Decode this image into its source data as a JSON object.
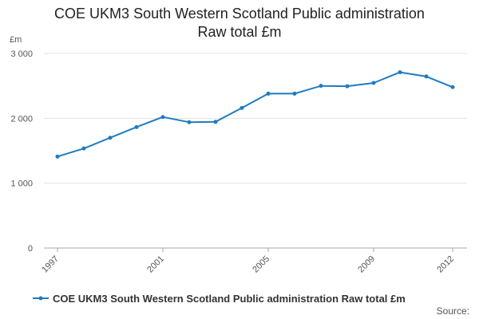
{
  "chart_data": {
    "type": "line",
    "title_line1": "COE UKM3 South Western Scotland Public administration",
    "title_line2": "Raw total £m",
    "ylabel": "£m",
    "xlabel": "",
    "x": [
      1997,
      1998,
      1999,
      2000,
      2001,
      2002,
      2003,
      2004,
      2005,
      2006,
      2007,
      2008,
      2009,
      2010,
      2011,
      2012
    ],
    "xticks": [
      "1997",
      "2001",
      "2005",
      "2009",
      "2012"
    ],
    "yticks": [
      "0",
      "1 000",
      "2 000",
      "3 000"
    ],
    "ylim": [
      0,
      3000
    ],
    "grid": true,
    "legend_position": "bottom",
    "series": [
      {
        "name": "COE UKM3 South Western Scotland Public administration Raw total £m",
        "color": "#1f7bbf",
        "values": [
          1410,
          1535,
          1700,
          1865,
          2020,
          1940,
          1945,
          2160,
          2380,
          2380,
          2500,
          2495,
          2545,
          2710,
          2645,
          2480
        ]
      }
    ]
  },
  "source_label": "Source:"
}
